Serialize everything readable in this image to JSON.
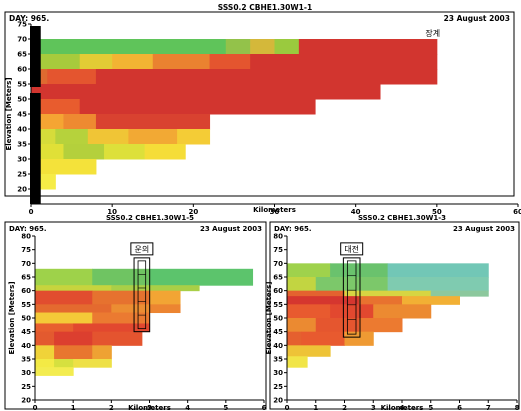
{
  "chart_data": [
    {
      "type": "heatmap",
      "title": "SSS0.2 CBHE1.30W1-1",
      "day_label": "DAY: 965.",
      "date_label": "23 August 2003",
      "annotation": "장계",
      "xlabel": "Kilometers",
      "ylabel": "Elevation [Meters]",
      "xlim": [
        0,
        60
      ],
      "ylim": [
        15,
        75
      ],
      "xticks": [
        0,
        10,
        20,
        30,
        40,
        50,
        60
      ],
      "yticks": [
        20,
        25,
        30,
        35,
        40,
        45,
        50,
        55,
        60,
        65,
        70,
        75
      ],
      "dam_x_extent": [
        0,
        1.2
      ],
      "dam_gap": [
        52,
        54
      ],
      "rows": [
        {
          "y": [
            65,
            70
          ],
          "x": [
            0,
            50
          ],
          "segments": [
            [
              0,
              24,
              "#5fc45a"
            ],
            [
              24,
              27,
              "#93c24a"
            ],
            [
              27,
              30,
              "#d4b83a"
            ],
            [
              30,
              33,
              "#9aca3e"
            ],
            [
              33,
              50,
              "#d2352f"
            ]
          ]
        },
        {
          "y": [
            60,
            65
          ],
          "x": [
            0,
            50
          ],
          "segments": [
            [
              0,
              6,
              "#a7cb3c"
            ],
            [
              6,
              10,
              "#e2cc35"
            ],
            [
              10,
              15,
              "#f2b433"
            ],
            [
              15,
              22,
              "#ea8230"
            ],
            [
              22,
              27,
              "#e4552f"
            ],
            [
              27,
              50,
              "#d2352f"
            ]
          ]
        },
        {
          "y": [
            55,
            60
          ],
          "x": [
            0,
            50
          ],
          "segments": [
            [
              0,
              2,
              "#df6a30"
            ],
            [
              2,
              8,
              "#e4552f"
            ],
            [
              8,
              50,
              "#d2352f"
            ]
          ]
        },
        {
          "y": [
            50,
            55
          ],
          "x": [
            0,
            43
          ],
          "segments": [
            [
              0,
              43,
              "#d2352f"
            ]
          ]
        },
        {
          "y": [
            45,
            50
          ],
          "x": [
            0,
            35
          ],
          "segments": [
            [
              0,
              6,
              "#e85c2e"
            ],
            [
              6,
              35,
              "#d2352f"
            ]
          ]
        },
        {
          "y": [
            40,
            45
          ],
          "x": [
            0,
            22
          ],
          "segments": [
            [
              0,
              4,
              "#f5a533"
            ],
            [
              4,
              8,
              "#ee8a31"
            ],
            [
              8,
              22,
              "#d94230"
            ]
          ]
        },
        {
          "y": [
            35,
            40
          ],
          "x": [
            0,
            22
          ],
          "segments": [
            [
              0,
              3,
              "#d6dc3a"
            ],
            [
              3,
              7,
              "#b6d23c"
            ],
            [
              7,
              12,
              "#f0c536"
            ],
            [
              12,
              18,
              "#f2a934"
            ],
            [
              18,
              22,
              "#f4cc36"
            ]
          ]
        },
        {
          "y": [
            30,
            35
          ],
          "x": [
            0,
            19
          ],
          "segments": [
            [
              0,
              4,
              "#e0e037"
            ],
            [
              4,
              9,
              "#b4d03c"
            ],
            [
              9,
              14,
              "#dde03a"
            ],
            [
              14,
              19,
              "#f5dd38"
            ]
          ]
        },
        {
          "y": [
            25,
            30
          ],
          "x": [
            0,
            8
          ],
          "segments": [
            [
              0,
              8,
              "#f4e23a"
            ]
          ]
        },
        {
          "y": [
            20,
            25
          ],
          "x": [
            0,
            3
          ],
          "segments": [
            [
              0,
              3,
              "#f6ec46"
            ]
          ]
        }
      ]
    },
    {
      "type": "heatmap",
      "title": "SSS0.2 CBHE1.30W1-5",
      "day_label": "DAY: 965.",
      "date_label": "23 August 2003",
      "annotation": "운의",
      "xlabel": "Kilometers",
      "ylabel": "Elevation [Meters]",
      "xlim": [
        0,
        6
      ],
      "ylim": [
        20,
        80
      ],
      "xticks": [
        0,
        1,
        2,
        3,
        4,
        5,
        6
      ],
      "yticks": [
        20,
        25,
        30,
        35,
        40,
        45,
        50,
        55,
        60,
        65,
        70,
        75,
        80
      ],
      "marker_x": [
        2.7,
        2.9
      ],
      "marker_y": [
        45,
        72
      ],
      "rows": [
        {
          "y": [
            62,
            68
          ],
          "x": [
            0,
            5.7
          ],
          "segments": [
            [
              0,
              1.5,
              "#9ed24a"
            ],
            [
              1.5,
              3,
              "#6fc462"
            ],
            [
              3,
              5.7,
              "#5cc46c"
            ]
          ]
        },
        {
          "y": [
            60,
            62
          ],
          "x": [
            0,
            4.3
          ],
          "segments": [
            [
              0,
              2,
              "#c6d43e"
            ],
            [
              2,
              4.3,
              "#a9cf47"
            ]
          ]
        },
        {
          "y": [
            55,
            60
          ],
          "x": [
            0,
            3.8
          ],
          "segments": [
            [
              0,
              1.5,
              "#e14d2f"
            ],
            [
              1.5,
              3,
              "#e6722f"
            ],
            [
              3,
              3.8,
              "#f2a534"
            ]
          ]
        },
        {
          "y": [
            52,
            55
          ],
          "x": [
            0,
            3.8
          ],
          "segments": [
            [
              0,
              2,
              "#e46a2f"
            ],
            [
              2,
              3,
              "#ec8d32"
            ],
            [
              3,
              3.8,
              "#ec8531"
            ]
          ]
        },
        {
          "y": [
            48,
            52
          ],
          "x": [
            0,
            3
          ],
          "segments": [
            [
              0,
              1.5,
              "#f4ca38"
            ],
            [
              1.5,
              3,
              "#eb7a31"
            ]
          ]
        },
        {
          "y": [
            45,
            48
          ],
          "x": [
            0,
            3
          ],
          "segments": [
            [
              0,
              1,
              "#e85f2f"
            ],
            [
              1,
              3,
              "#e2482f"
            ]
          ]
        },
        {
          "y": [
            40,
            45
          ],
          "x": [
            0,
            2.8
          ],
          "segments": [
            [
              0,
              0.5,
              "#e35a2f"
            ],
            [
              0.5,
              1.5,
              "#dc3f2f"
            ],
            [
              1.5,
              2.8,
              "#e4542f"
            ]
          ]
        },
        {
          "y": [
            35,
            40
          ],
          "x": [
            0,
            2
          ],
          "segments": [
            [
              0,
              0.5,
              "#f0d339"
            ],
            [
              0.5,
              1.5,
              "#e8762f"
            ],
            [
              1.5,
              2,
              "#eea233"
            ]
          ]
        },
        {
          "y": [
            32,
            35
          ],
          "x": [
            0,
            2
          ],
          "segments": [
            [
              0,
              0.5,
              "#f3ea45"
            ],
            [
              0.5,
              1,
              "#d6e03f"
            ],
            [
              1,
              2,
              "#eee046"
            ]
          ]
        },
        {
          "y": [
            29,
            32
          ],
          "x": [
            0,
            1
          ],
          "segments": [
            [
              0,
              1,
              "#f3ec50"
            ]
          ]
        }
      ]
    },
    {
      "type": "heatmap",
      "title": "SSS0.2 CBHE1.30W1-3",
      "day_label": "DAY: 965.",
      "date_label": "23 August 2003",
      "annotation": "대전",
      "xlabel": "Kilometers",
      "ylabel": "Elevation [Meters]",
      "xlim": [
        0,
        8
      ],
      "ylim": [
        20,
        80
      ],
      "xticks": [
        0,
        1,
        2,
        3,
        4,
        5,
        6,
        7,
        8
      ],
      "yticks": [
        20,
        25,
        30,
        35,
        40,
        45,
        50,
        55,
        60,
        65,
        70,
        75,
        80
      ],
      "marker_x": [
        2.1,
        2.4
      ],
      "marker_y": [
        43,
        72
      ],
      "rows": [
        {
          "y": [
            65,
            70
          ],
          "x": [
            0,
            7
          ],
          "segments": [
            [
              0,
              1.5,
              "#9fd24c"
            ],
            [
              1.5,
              3.5,
              "#6ac26d"
            ],
            [
              3.5,
              7,
              "#72c7b6"
            ]
          ]
        },
        {
          "y": [
            60,
            65
          ],
          "x": [
            0,
            7
          ],
          "segments": [
            [
              0,
              1,
              "#c2d541"
            ],
            [
              1,
              3.5,
              "#7cc86a"
            ],
            [
              3.5,
              7,
              "#7fcbb0"
            ]
          ]
        },
        {
          "y": [
            58,
            60
          ],
          "x": [
            0,
            7
          ],
          "segments": [
            [
              0,
              2,
              "#e4622f"
            ],
            [
              2,
              5,
              "#d7d542"
            ],
            [
              5,
              7,
              "#8cc89d"
            ]
          ]
        },
        {
          "y": [
            55,
            58
          ],
          "x": [
            0,
            6
          ],
          "segments": [
            [
              0,
              2.5,
              "#d5362f"
            ],
            [
              2.5,
              4,
              "#e8722f"
            ],
            [
              4,
              6,
              "#f2b034"
            ]
          ]
        },
        {
          "y": [
            50,
            55
          ],
          "x": [
            0,
            5
          ],
          "segments": [
            [
              0,
              1.5,
              "#e85a2f"
            ],
            [
              1.5,
              3,
              "#e2482f"
            ],
            [
              3,
              5,
              "#ec8a31"
            ]
          ]
        },
        {
          "y": [
            45,
            50
          ],
          "x": [
            0,
            4
          ],
          "segments": [
            [
              0,
              1,
              "#eb8a31"
            ],
            [
              1,
              2.5,
              "#e5562f"
            ],
            [
              2.5,
              4,
              "#ec7a30"
            ]
          ]
        },
        {
          "y": [
            40,
            45
          ],
          "x": [
            0,
            3
          ],
          "segments": [
            [
              0,
              0.5,
              "#e5602f"
            ],
            [
              0.5,
              2,
              "#e85a2f"
            ],
            [
              2,
              3,
              "#ef9a33"
            ]
          ]
        },
        {
          "y": [
            36,
            40
          ],
          "x": [
            0,
            1.5
          ],
          "segments": [
            [
              0,
              1.5,
              "#eec337"
            ]
          ]
        },
        {
          "y": [
            32,
            36
          ],
          "x": [
            0,
            0.7
          ],
          "segments": [
            [
              0,
              0.7,
              "#f1e548"
            ]
          ]
        }
      ]
    }
  ]
}
